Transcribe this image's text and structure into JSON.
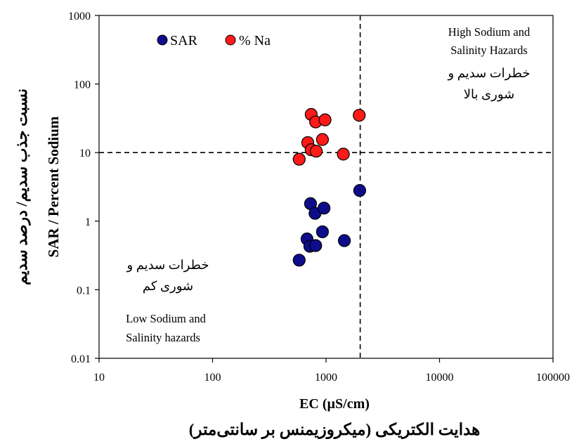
{
  "chart_data": {
    "type": "scatter",
    "title": "",
    "xlabel": "EC (µS/cm)",
    "xlabel_persian": "هدایت الکتریکی (میکروزیمنس بر سانتی‌متر)",
    "ylabel": "SAR / Percent Sodium",
    "ylabel_persian": "نسبت جذب سدیم/ درصد سدیم",
    "xscale": "log",
    "yscale": "log",
    "xlim": [
      10,
      100000
    ],
    "ylim": [
      0.01,
      1000
    ],
    "x_ticks": [
      "10",
      "100",
      "1000",
      "10000",
      "100000"
    ],
    "y_ticks": [
      "0.01",
      "0.1",
      "1",
      "10",
      "100",
      "1000"
    ],
    "grid": false,
    "legend": "top-left",
    "reference_lines": {
      "x": 2000,
      "y": 10,
      "style": "dashed"
    },
    "series": [
      {
        "name": "SAR",
        "color": "#0d0d8c",
        "points": [
          [
            580,
            0.27
          ],
          [
            680,
            0.55
          ],
          [
            720,
            0.43
          ],
          [
            810,
            0.44
          ],
          [
            930,
            0.7
          ],
          [
            1450,
            0.52
          ],
          [
            730,
            1.8
          ],
          [
            800,
            1.3
          ],
          [
            960,
            1.55
          ],
          [
            1980,
            2.8
          ]
        ]
      },
      {
        "name": "% Na",
        "color": "#ff1a1a",
        "points": [
          [
            580,
            8
          ],
          [
            690,
            14
          ],
          [
            740,
            11
          ],
          [
            820,
            10.5
          ],
          [
            930,
            15.5
          ],
          [
            1420,
            9.5
          ],
          [
            740,
            36
          ],
          [
            810,
            28
          ],
          [
            980,
            30
          ],
          [
            1960,
            35
          ]
        ]
      }
    ],
    "annotations": {
      "top_right": {
        "english": [
          "High Sodium and",
          "Salinity Hazards"
        ],
        "persian": [
          "خطرات سدیم و",
          "شوری بالا"
        ]
      },
      "bottom_left": {
        "persian": [
          "خطرات سدیم و",
          "شوری کم"
        ],
        "english": [
          "Low Sodium and",
          "Salinity hazards"
        ]
      }
    }
  }
}
